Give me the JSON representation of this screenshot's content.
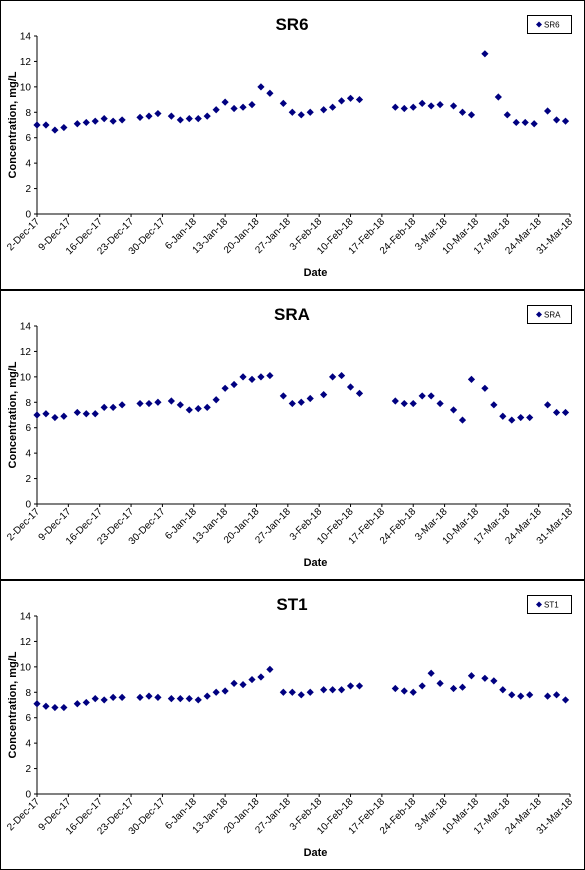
{
  "colors": {
    "marker": "#000080",
    "frame": "#000000",
    "background": "#ffffff"
  },
  "chart_data": [
    {
      "type": "scatter",
      "title": "SR6",
      "xlabel": "Date",
      "ylabel": "Concentration, mg/L",
      "ylim": [
        0,
        14
      ],
      "yticks": [
        0,
        2,
        4,
        6,
        8,
        10,
        12,
        14
      ],
      "xrange": [
        "2017-12-02",
        "2018-03-31"
      ],
      "xticks": [
        "2-Dec-17",
        "9-Dec-17",
        "16-Dec-17",
        "23-Dec-17",
        "30-Dec-17",
        "6-Jan-18",
        "13-Jan-18",
        "20-Jan-18",
        "27-Jan-18",
        "3-Feb-18",
        "10-Feb-18",
        "17-Feb-18",
        "24-Feb-18",
        "3-Mar-18",
        "10-Mar-18",
        "17-Mar-18",
        "24-Mar-18",
        "31-Mar-18"
      ],
      "legend": "top-right",
      "series": [
        {
          "name": "SR6",
          "x": [
            "2017-12-02",
            "2017-12-04",
            "2017-12-06",
            "2017-12-08",
            "2017-12-11",
            "2017-12-13",
            "2017-12-15",
            "2017-12-17",
            "2017-12-19",
            "2017-12-21",
            "2017-12-25",
            "2017-12-27",
            "2017-12-29",
            "2018-01-01",
            "2018-01-03",
            "2018-01-05",
            "2018-01-07",
            "2018-01-09",
            "2018-01-11",
            "2018-01-13",
            "2018-01-15",
            "2018-01-17",
            "2018-01-19",
            "2018-01-21",
            "2018-01-23",
            "2018-01-26",
            "2018-01-28",
            "2018-01-30",
            "2018-02-01",
            "2018-02-04",
            "2018-02-06",
            "2018-02-08",
            "2018-02-10",
            "2018-02-12",
            "2018-02-20",
            "2018-02-22",
            "2018-02-24",
            "2018-02-26",
            "2018-02-28",
            "2018-03-02",
            "2018-03-05",
            "2018-03-07",
            "2018-03-09",
            "2018-03-12",
            "2018-03-15",
            "2018-03-17",
            "2018-03-19",
            "2018-03-21",
            "2018-03-23",
            "2018-03-26",
            "2018-03-28",
            "2018-03-30"
          ],
          "y": [
            7.0,
            7.0,
            6.6,
            6.8,
            7.1,
            7.2,
            7.3,
            7.5,
            7.3,
            7.4,
            7.6,
            7.7,
            7.9,
            7.7,
            7.4,
            7.5,
            7.5,
            7.7,
            8.2,
            8.8,
            8.3,
            8.4,
            8.6,
            10.0,
            9.5,
            8.7,
            8.0,
            7.8,
            8.0,
            8.2,
            8.4,
            8.9,
            9.1,
            9.0,
            8.4,
            8.3,
            8.4,
            8.7,
            8.5,
            8.6,
            8.5,
            8.0,
            7.8,
            12.6,
            9.2,
            7.8,
            7.2,
            7.2,
            7.1,
            8.1,
            7.4,
            7.3
          ]
        }
      ]
    },
    {
      "type": "scatter",
      "title": "SRA",
      "xlabel": "Date",
      "ylabel": "Concentration, mg/L",
      "ylim": [
        0,
        14
      ],
      "yticks": [
        0,
        2,
        4,
        6,
        8,
        10,
        12,
        14
      ],
      "xrange": [
        "2017-12-02",
        "2018-03-31"
      ],
      "xticks": [
        "2-Dec-17",
        "9-Dec-17",
        "16-Dec-17",
        "23-Dec-17",
        "30-Dec-17",
        "6-Jan-18",
        "13-Jan-18",
        "20-Jan-18",
        "27-Jan-18",
        "3-Feb-18",
        "10-Feb-18",
        "17-Feb-18",
        "24-Feb-18",
        "3-Mar-18",
        "10-Mar-18",
        "17-Mar-18",
        "24-Mar-18",
        "31-Mar-18"
      ],
      "legend": "top-right",
      "series": [
        {
          "name": "SRA",
          "x": [
            "2017-12-02",
            "2017-12-04",
            "2017-12-06",
            "2017-12-08",
            "2017-12-11",
            "2017-12-13",
            "2017-12-15",
            "2017-12-17",
            "2017-12-19",
            "2017-12-21",
            "2017-12-25",
            "2017-12-27",
            "2017-12-29",
            "2018-01-01",
            "2018-01-03",
            "2018-01-05",
            "2018-01-07",
            "2018-01-09",
            "2018-01-11",
            "2018-01-13",
            "2018-01-15",
            "2018-01-17",
            "2018-01-19",
            "2018-01-21",
            "2018-01-23",
            "2018-01-26",
            "2018-01-28",
            "2018-01-30",
            "2018-02-01",
            "2018-02-04",
            "2018-02-06",
            "2018-02-08",
            "2018-02-10",
            "2018-02-12",
            "2018-02-20",
            "2018-02-22",
            "2018-02-24",
            "2018-02-26",
            "2018-02-28",
            "2018-03-02",
            "2018-03-05",
            "2018-03-07",
            "2018-03-09",
            "2018-03-12",
            "2018-03-14",
            "2018-03-16",
            "2018-03-18",
            "2018-03-20",
            "2018-03-22",
            "2018-03-26",
            "2018-03-28",
            "2018-03-30"
          ],
          "y": [
            7.0,
            7.1,
            6.8,
            6.9,
            7.2,
            7.1,
            7.1,
            7.6,
            7.6,
            7.8,
            7.9,
            7.9,
            8.0,
            8.1,
            7.8,
            7.4,
            7.5,
            7.6,
            8.2,
            9.1,
            9.4,
            10.0,
            9.8,
            10.0,
            10.1,
            8.5,
            7.9,
            8.0,
            8.3,
            8.6,
            10.0,
            10.1,
            9.2,
            8.7,
            8.1,
            7.9,
            7.9,
            8.5,
            8.5,
            7.9,
            7.4,
            6.6,
            9.8,
            9.1,
            7.8,
            6.9,
            6.6,
            6.8,
            6.8,
            7.8,
            7.2,
            7.2
          ]
        }
      ]
    },
    {
      "type": "scatter",
      "title": "ST1",
      "xlabel": "Date",
      "ylabel": "Concentration, mg/L",
      "ylim": [
        0,
        14
      ],
      "yticks": [
        0,
        2,
        4,
        6,
        8,
        10,
        12,
        14
      ],
      "xrange": [
        "2017-12-02",
        "2018-03-31"
      ],
      "xticks": [
        "2-Dec-17",
        "9-Dec-17",
        "16-Dec-17",
        "23-Dec-17",
        "30-Dec-17",
        "6-Jan-18",
        "13-Jan-18",
        "20-Jan-18",
        "27-Jan-18",
        "3-Feb-18",
        "10-Feb-18",
        "17-Feb-18",
        "24-Feb-18",
        "3-Mar-18",
        "10-Mar-18",
        "17-Mar-18",
        "24-Mar-18",
        "31-Mar-18"
      ],
      "legend": "top-right",
      "series": [
        {
          "name": "ST1",
          "x": [
            "2017-12-02",
            "2017-12-04",
            "2017-12-06",
            "2017-12-08",
            "2017-12-11",
            "2017-12-13",
            "2017-12-15",
            "2017-12-17",
            "2017-12-19",
            "2017-12-21",
            "2017-12-25",
            "2017-12-27",
            "2017-12-29",
            "2018-01-01",
            "2018-01-03",
            "2018-01-05",
            "2018-01-07",
            "2018-01-09",
            "2018-01-11",
            "2018-01-13",
            "2018-01-15",
            "2018-01-17",
            "2018-01-19",
            "2018-01-21",
            "2018-01-23",
            "2018-01-26",
            "2018-01-28",
            "2018-01-30",
            "2018-02-01",
            "2018-02-04",
            "2018-02-06",
            "2018-02-08",
            "2018-02-10",
            "2018-02-12",
            "2018-02-20",
            "2018-02-22",
            "2018-02-24",
            "2018-02-26",
            "2018-02-28",
            "2018-03-02",
            "2018-03-05",
            "2018-03-07",
            "2018-03-09",
            "2018-03-12",
            "2018-03-14",
            "2018-03-16",
            "2018-03-18",
            "2018-03-20",
            "2018-03-22",
            "2018-03-26",
            "2018-03-28",
            "2018-03-30"
          ],
          "y": [
            7.1,
            6.9,
            6.8,
            6.8,
            7.1,
            7.2,
            7.5,
            7.4,
            7.6,
            7.6,
            7.6,
            7.7,
            7.6,
            7.5,
            7.5,
            7.5,
            7.4,
            7.7,
            8.0,
            8.1,
            8.7,
            8.6,
            9.0,
            9.2,
            9.8,
            8.0,
            8.0,
            7.8,
            8.0,
            8.2,
            8.2,
            8.2,
            8.5,
            8.5,
            8.3,
            8.1,
            8.0,
            8.5,
            9.5,
            8.7,
            8.3,
            8.4,
            9.3,
            9.1,
            8.9,
            8.2,
            7.8,
            7.7,
            7.8,
            7.7,
            7.8,
            7.4
          ]
        }
      ]
    }
  ]
}
